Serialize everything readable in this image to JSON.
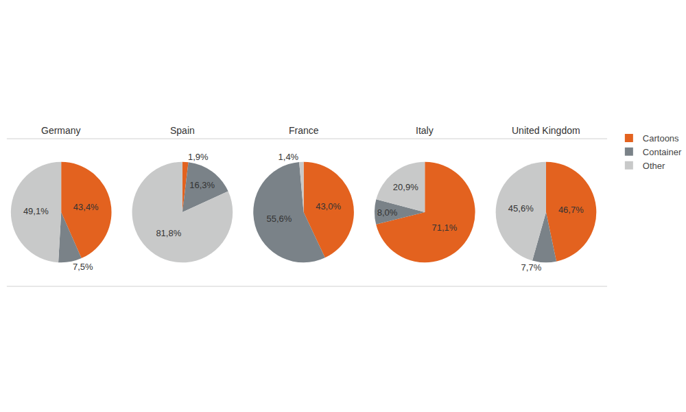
{
  "chart_data": {
    "type": "pie",
    "categories": [
      "Cartoons",
      "Container",
      "Other"
    ],
    "colors": [
      "#e3621f",
      "#7a8288",
      "#c8c9c9"
    ],
    "legend": "top right",
    "data_labels": true,
    "series": [
      {
        "name": "Germany",
        "values": [
          43.4,
          7.5,
          49.1
        ],
        "value_labels": [
          "43,4%",
          "7,5%",
          "49,1%"
        ]
      },
      {
        "name": "Spain",
        "values": [
          1.9,
          16.3,
          81.8
        ],
        "value_labels": [
          "1,9%",
          "16,3%",
          "81,8%"
        ]
      },
      {
        "name": "France",
        "values": [
          43.0,
          55.6,
          1.4
        ],
        "value_labels": [
          "43,0%",
          "55,6%",
          "1,4%"
        ]
      },
      {
        "name": "Italy",
        "values": [
          71.1,
          8.0,
          20.9
        ],
        "value_labels": [
          "71,1%",
          "8,0%",
          "20,9%"
        ]
      },
      {
        "name": "United Kingdom",
        "values": [
          46.7,
          7.7,
          45.6
        ],
        "value_labels": [
          "46,7%",
          "7,7%",
          "45,6%"
        ]
      }
    ]
  }
}
